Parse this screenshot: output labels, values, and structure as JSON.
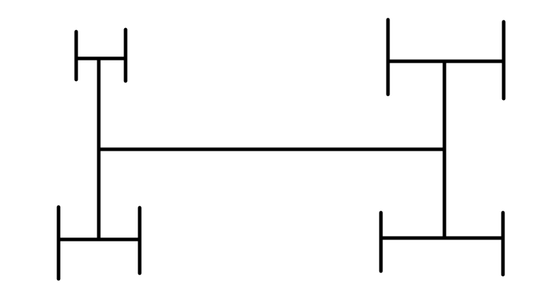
{
  "diagram": {
    "description_type": "H-tree fractal structure",
    "line_color": "#000000",
    "background_color": "#ffffff",
    "segments": [
      "main-horizontal-bar",
      "left-vertical-bar",
      "right-vertical-bar",
      "top-left-h",
      "bottom-left-h",
      "top-right-h",
      "bottom-right-h"
    ]
  }
}
